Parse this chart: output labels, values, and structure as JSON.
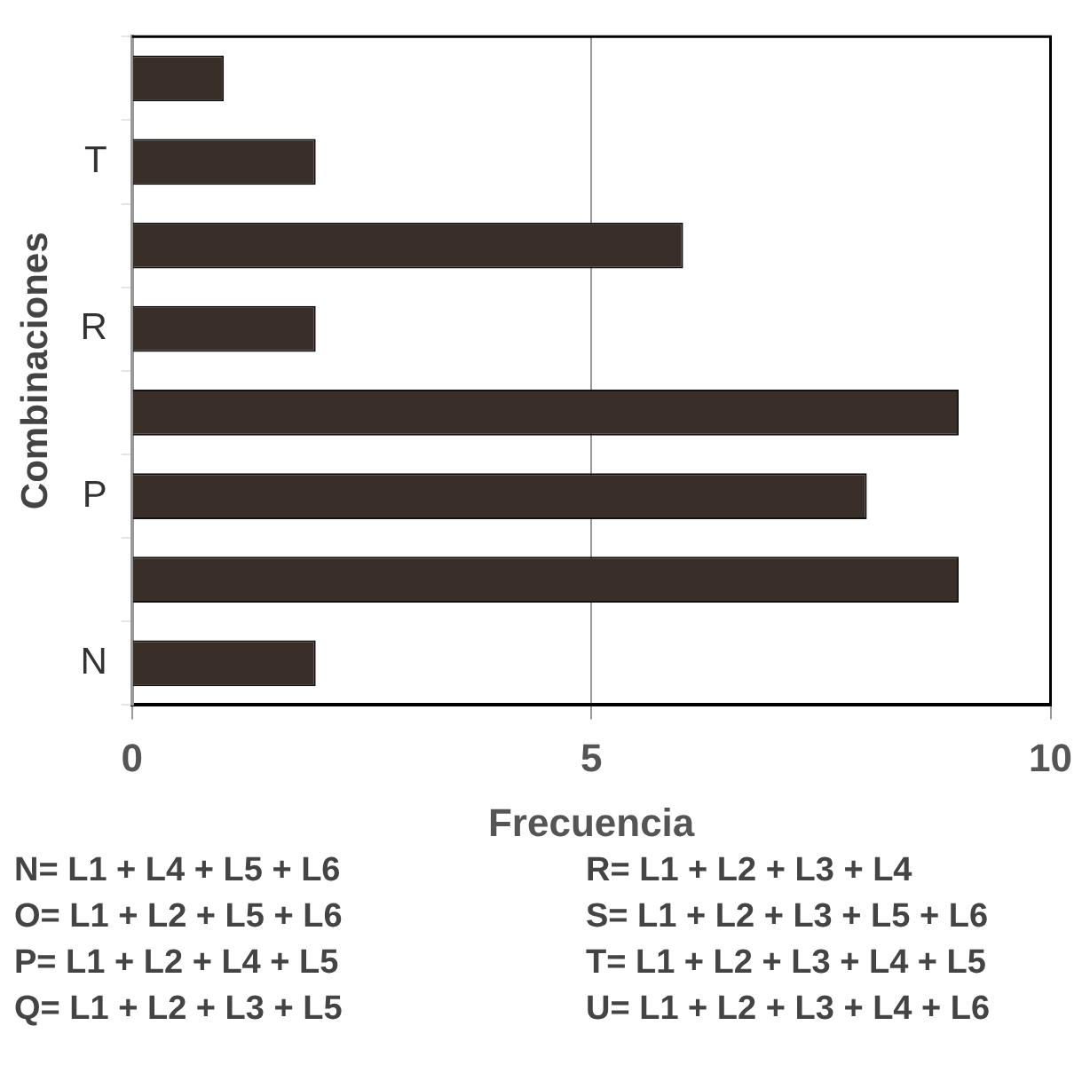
{
  "chart_data": {
    "type": "bar",
    "orientation": "horizontal",
    "xlabel": "Frecuencia",
    "ylabel": "Combinaciones",
    "categories": [
      null,
      "T",
      null,
      "R",
      null,
      "P",
      null,
      "N"
    ],
    "values": [
      1,
      2,
      6,
      2,
      9,
      8,
      9,
      2
    ],
    "color": "#3a2e28",
    "xlim": [
      0,
      10
    ],
    "xticks": [
      0,
      5,
      10
    ],
    "grid": "x",
    "annotations": [
      "N= L1 + L4 + L5 + L6",
      "O= L1 + L2 + L5 + L6",
      "P= L1 + L2 + L4 + L5",
      "Q= L1 + L2 + L3 + L5",
      "R= L1 + L2 + L3 + L4",
      "S= L1 + L2 + L3 + L5 + L6",
      "T= L1 + L2 + L3 + L4 + L5",
      "U= L1 + L2 + L3 + L4 + L6"
    ]
  }
}
